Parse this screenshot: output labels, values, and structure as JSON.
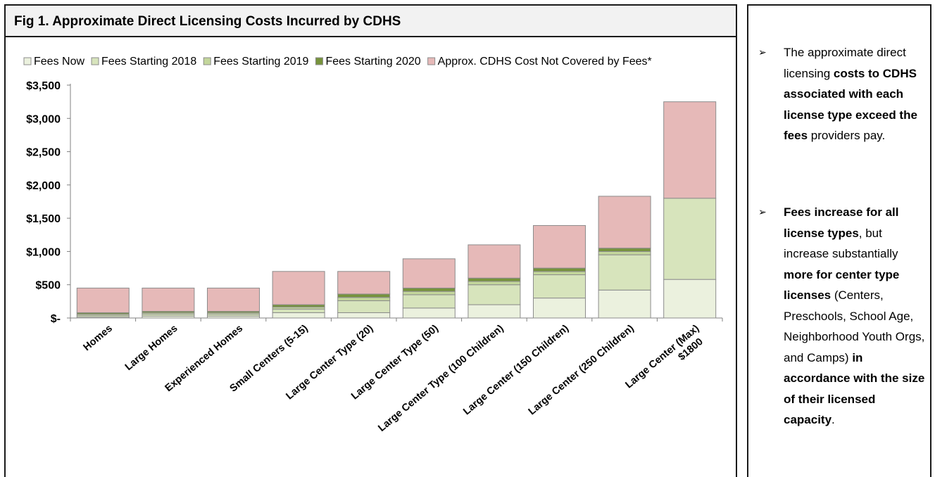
{
  "title": "Fig 1. Approximate Direct Licensing Costs Incurred by CDHS",
  "chart_data": {
    "type": "bar",
    "stacked": true,
    "title": "Fig 1. Approximate Direct Licensing Costs Incurred by CDHS",
    "categories": [
      "Homes",
      "Large Homes",
      "Experienced Homes",
      "Small Centers (5-15)",
      "Large Center Type (20)",
      "Large Center Type (50)",
      "Large Center Type (100 Children)",
      "Large Center (150 Children)",
      "Large Center (250 Children)",
      "Large Center (Max)\n$1800"
    ],
    "series": [
      {
        "name": "Fees Now",
        "color": "#ebf1de",
        "values": [
          15,
          30,
          30,
          80,
          80,
          150,
          200,
          300,
          420,
          580
        ]
      },
      {
        "name": "Fees Starting 2018",
        "color": "#d7e4bc",
        "values": [
          25,
          30,
          30,
          55,
          180,
          200,
          300,
          350,
          530,
          1220
        ]
      },
      {
        "name": "Fees Starting 2019",
        "color": "#c3d69b",
        "values": [
          20,
          20,
          20,
          30,
          50,
          50,
          50,
          50,
          50,
          0
        ]
      },
      {
        "name": "Fees Starting 2020",
        "color": "#77933c",
        "values": [
          20,
          20,
          20,
          35,
          50,
          50,
          50,
          50,
          50,
          0
        ]
      },
      {
        "name": "Approx. CDHS Cost Not Covered by Fees*",
        "color": "#e6b9b8",
        "values": [
          370,
          350,
          350,
          500,
          340,
          440,
          500,
          640,
          780,
          1450
        ]
      }
    ],
    "yticks": [
      "$-",
      "$500",
      "$1,000",
      "$1,500",
      "$2,000",
      "$2,500",
      "$3,000",
      "$3,500"
    ],
    "ylim": [
      0,
      3500
    ],
    "legend_position": "top",
    "grid": false
  },
  "bullets": [
    {
      "segments": [
        {
          "t": "The approximate direct licensing ",
          "b": false
        },
        {
          "t": "costs to CDHS associated with each license type exceed the fees",
          "b": true
        },
        {
          "t": " providers pay.",
          "b": false
        }
      ]
    },
    {
      "segments": [
        {
          "t": "Fees increase for all license types",
          "b": true
        },
        {
          "t": ", but increase substantially ",
          "b": false
        },
        {
          "t": "more for center type licenses",
          "b": true
        },
        {
          "t": " (Centers, Preschools, School Age, Neighborhood Youth Orgs, and Camps) ",
          "b": false
        },
        {
          "t": "in accordance with the size of their licensed capacity",
          "b": true
        },
        {
          "t": ".",
          "b": false
        }
      ]
    }
  ]
}
